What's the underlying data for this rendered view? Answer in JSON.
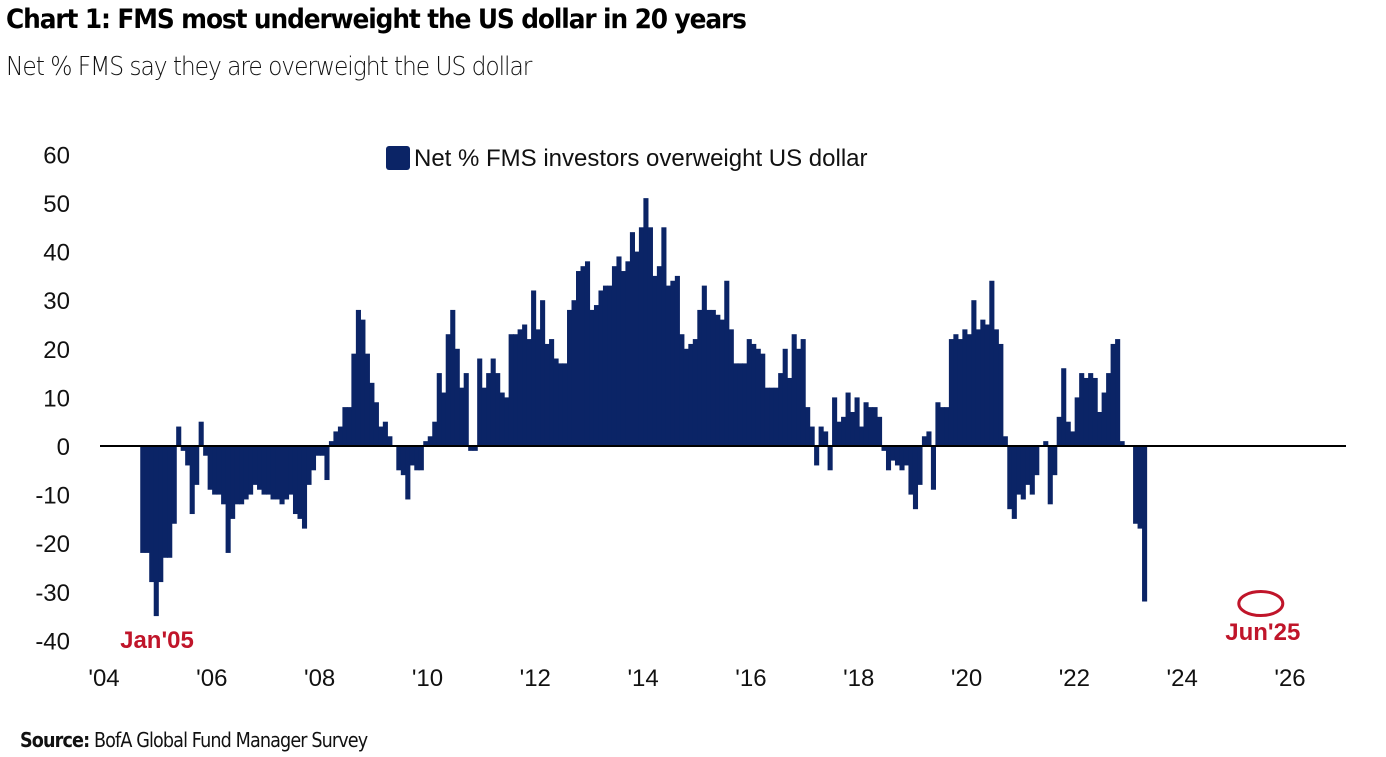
{
  "title": "Chart 1: FMS most underweight the US dollar in 20 years",
  "subtitle": "Net % FMS say they are overweight the US dollar",
  "source_label": "Source:",
  "source_text": "BofA Global Fund Manager Survey",
  "colors": {
    "bar": "#0b2466",
    "annotation": "#c0152a",
    "zero_line": "#000000",
    "text": "#111111"
  },
  "chart_data": {
    "type": "bar",
    "title": "Chart 1: FMS most underweight the US dollar in 20 years",
    "subtitle": "Net % FMS say they are overweight the US dollar",
    "xlabel": "",
    "ylabel": "",
    "ylim": [
      -40,
      60
    ],
    "xlim": [
      2004,
      2026
    ],
    "yticks": [
      60,
      50,
      40,
      30,
      20,
      10,
      0,
      -10,
      -20,
      -30,
      -40
    ],
    "xticks": [
      {
        "value": 2004,
        "label": "'04"
      },
      {
        "value": 2006,
        "label": "'06"
      },
      {
        "value": 2008,
        "label": "'08"
      },
      {
        "value": 2010,
        "label": "'10"
      },
      {
        "value": 2012,
        "label": "'12"
      },
      {
        "value": 2014,
        "label": "'14"
      },
      {
        "value": 2016,
        "label": "'16"
      },
      {
        "value": 2018,
        "label": "'18"
      },
      {
        "value": 2020,
        "label": "'20"
      },
      {
        "value": 2022,
        "label": "'22"
      },
      {
        "value": 2024,
        "label": "'24"
      },
      {
        "value": 2026,
        "label": "'26"
      }
    ],
    "grid": false,
    "legend": {
      "position": "top-center",
      "entries": [
        "Net % FMS investors overweight US dollar"
      ]
    },
    "series": [
      {
        "name": "Net % FMS investors overweight US dollar",
        "start": "2004-09",
        "frequency": "monthly",
        "values": [
          -22,
          -22,
          -28,
          -35,
          -28,
          -23,
          -23,
          -16,
          4,
          -1,
          -4,
          -14,
          -8,
          5,
          -2,
          -9,
          -10,
          -10,
          -12,
          -22,
          -15,
          -12,
          -12,
          -11,
          -10,
          -8,
          -9,
          -10,
          -10,
          -11,
          -11,
          -12,
          -11,
          -10,
          -14,
          -15,
          -17,
          -8,
          -5,
          -2,
          -2,
          -7,
          1,
          3,
          4,
          8,
          8,
          19,
          28,
          26,
          19,
          13,
          9,
          4,
          5,
          2,
          0,
          -5,
          -6,
          -11,
          -4,
          -5,
          -5,
          1,
          2,
          5,
          15,
          11,
          23,
          28,
          20,
          12,
          15,
          -1,
          -1,
          18,
          12,
          15,
          18,
          15,
          11,
          10,
          23,
          23,
          24,
          25,
          22,
          32,
          24,
          30,
          21,
          22,
          18,
          17,
          17,
          28,
          30,
          36,
          37,
          38,
          28,
          29,
          32,
          33,
          33,
          37,
          39,
          36,
          38,
          44,
          40,
          45,
          51,
          45,
          35,
          37,
          45,
          33,
          34,
          35,
          23,
          20,
          21,
          22,
          28,
          33,
          28,
          28,
          27,
          26,
          34,
          24,
          17,
          17,
          17,
          22,
          21,
          20,
          19,
          12,
          12,
          12,
          15,
          20,
          14,
          23,
          20,
          22,
          8,
          4,
          -4,
          4,
          3,
          -5,
          10,
          5,
          6,
          11,
          7,
          10,
          4,
          9,
          8,
          8,
          6,
          -1,
          -5,
          -3,
          -4,
          -5,
          -4,
          -10,
          -13,
          -8,
          2,
          3,
          -9,
          9,
          8,
          8,
          22,
          23,
          22,
          24,
          23,
          30,
          24,
          26,
          25,
          34,
          24,
          21,
          2,
          -13,
          -15,
          -10,
          -11,
          -8,
          -10,
          -6,
          0,
          1,
          -12,
          -6,
          6,
          16,
          5,
          3,
          10,
          15,
          14,
          15,
          14,
          7,
          11,
          15,
          21,
          22,
          1,
          0,
          0,
          -16,
          -17,
          -32
        ]
      }
    ],
    "annotations": [
      {
        "label": "Jan'05",
        "x": "2005-01",
        "y": -35
      },
      {
        "label": "Jun'25",
        "x": "2025-06",
        "y": -32,
        "circled": true
      }
    ]
  }
}
